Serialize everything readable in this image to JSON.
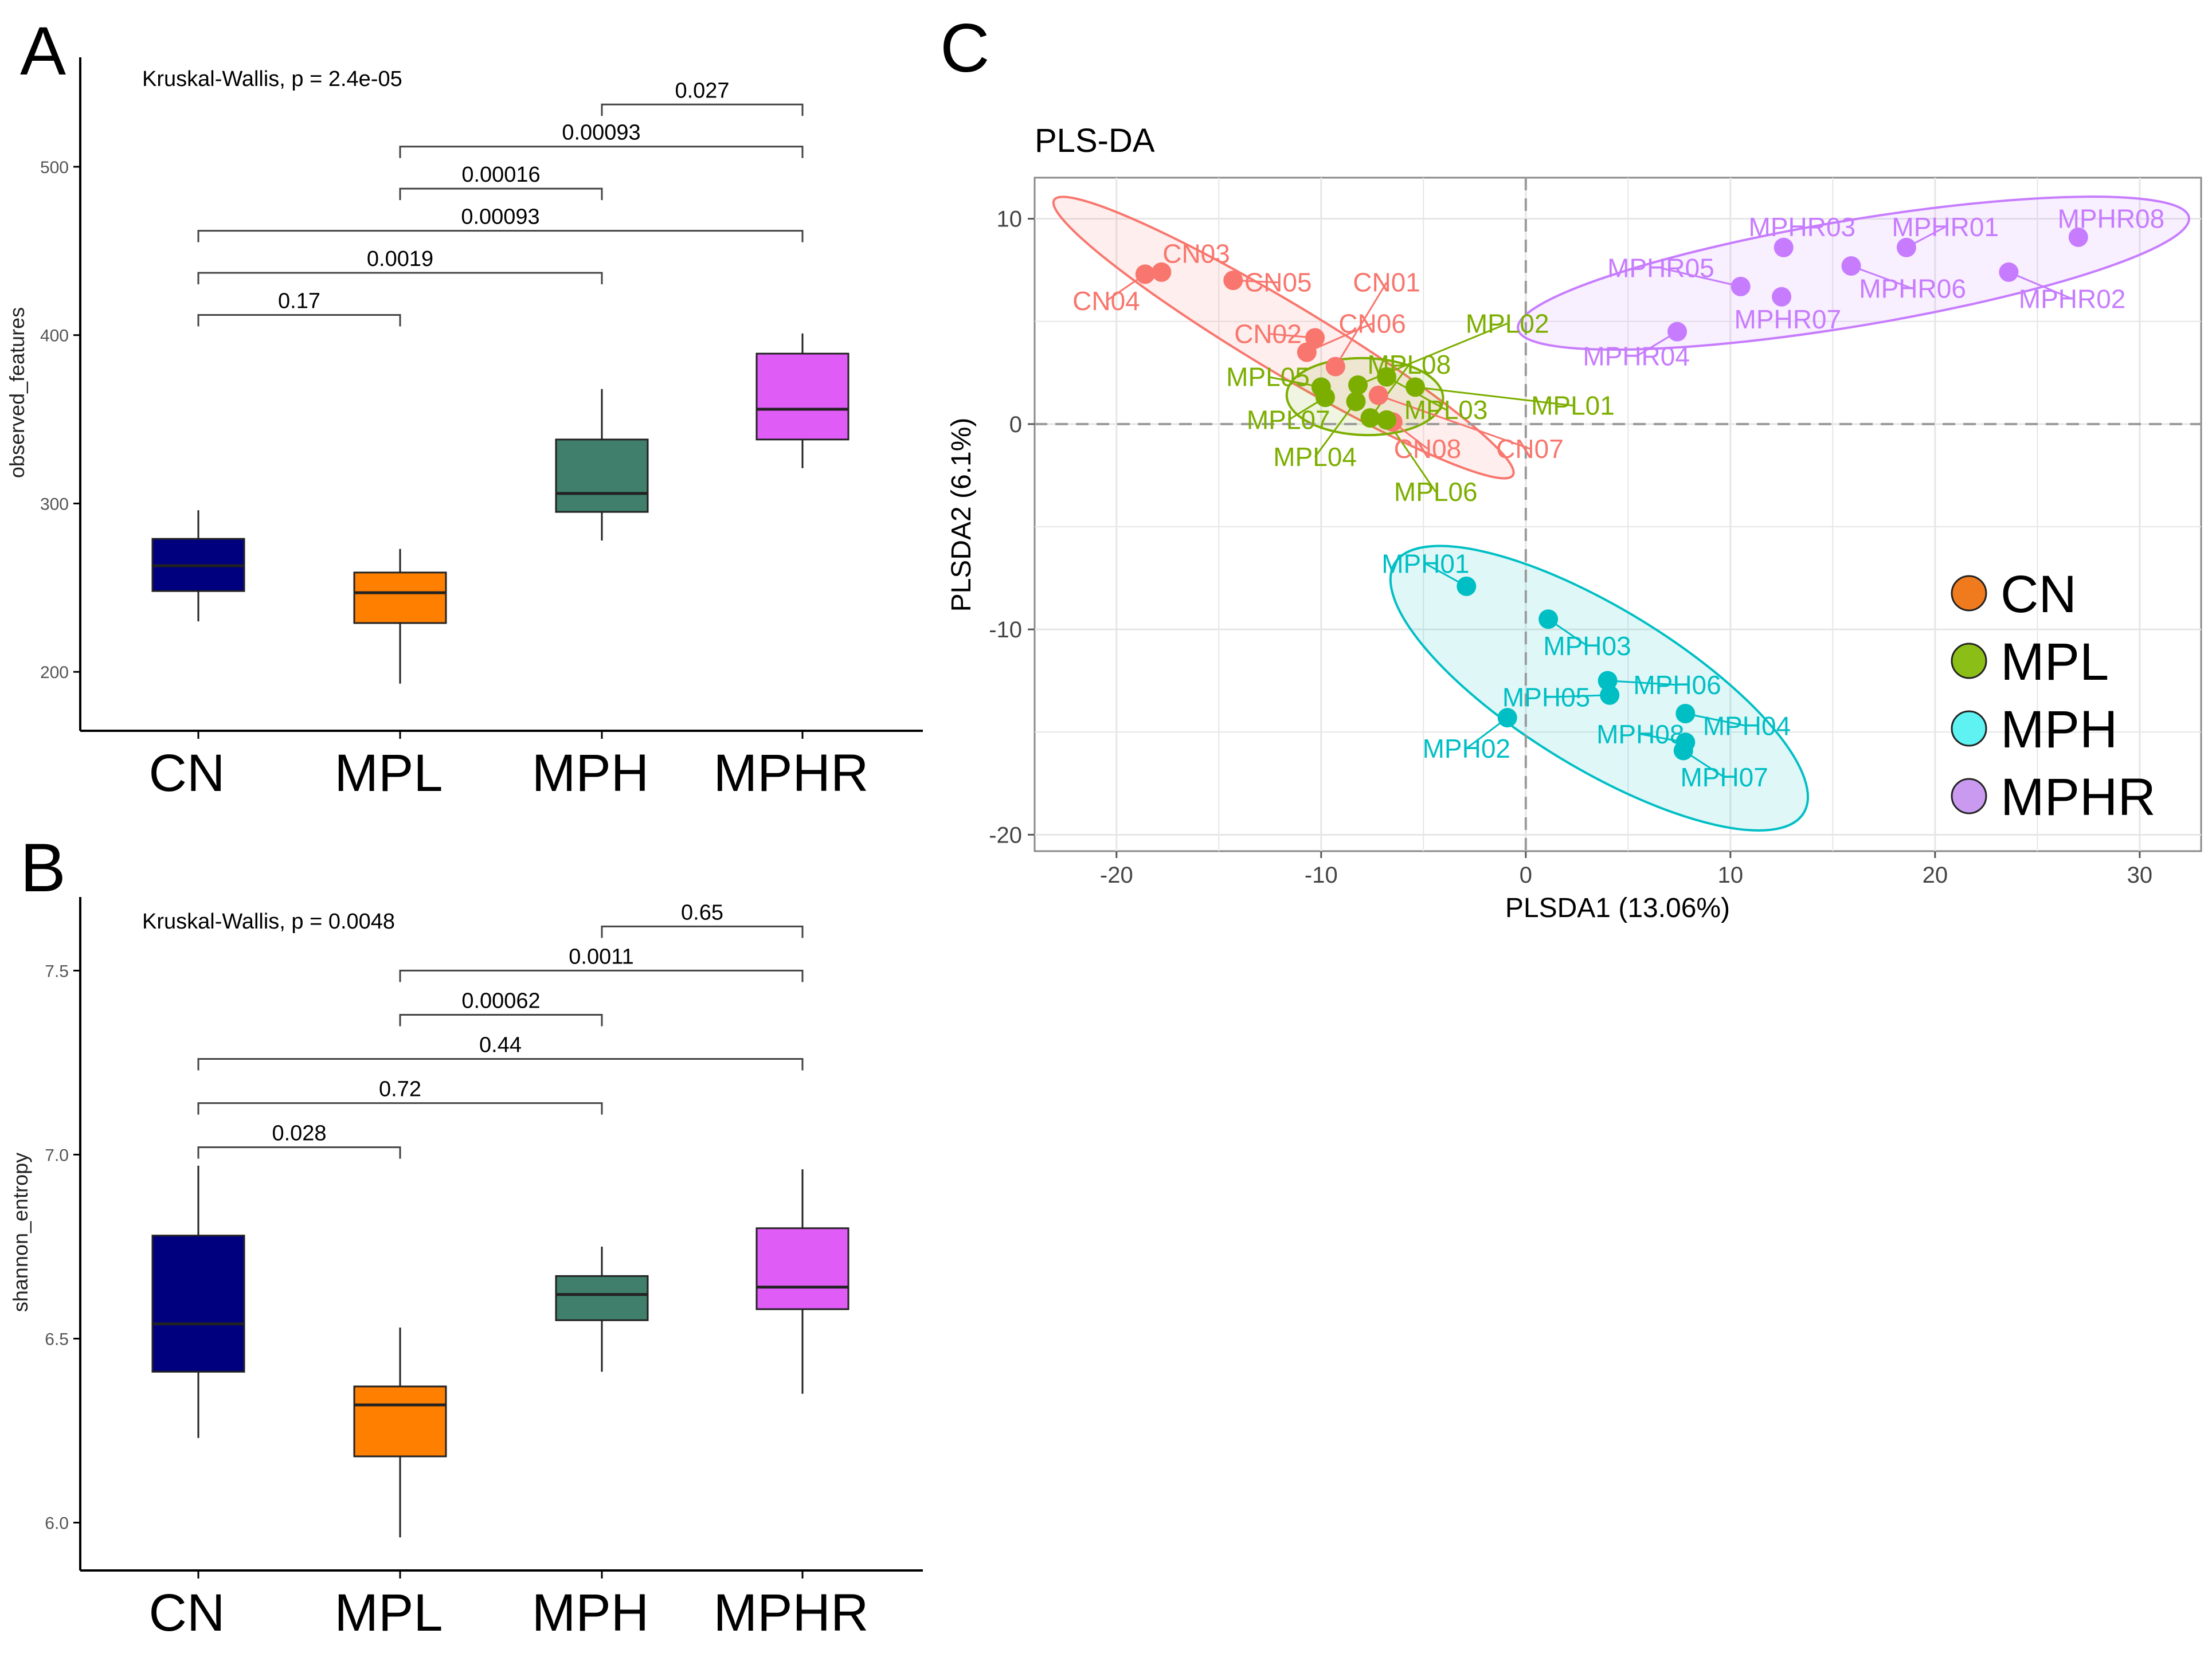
{
  "panels": {
    "a": "A",
    "b": "B",
    "c": "C"
  },
  "group_colors": {
    "CN": "#00007f",
    "MPL": "#ff7f00",
    "MPH": "#3f7f6b",
    "MPHR": "#e05cf7"
  },
  "chart_data": [
    {
      "type": "box",
      "panel": "A",
      "ylabel": "observed_features",
      "ylim": [
        165,
        565
      ],
      "yticks": [
        200,
        300,
        400,
        500
      ],
      "annotation": "Kruskal-Wallis, p = 2.4e-05",
      "categories": [
        "CN",
        "MPL",
        "MPH",
        "MPHR"
      ],
      "boxes": [
        {
          "name": "CN",
          "min": 230,
          "q1": 248,
          "median": 263,
          "q3": 279,
          "max": 296
        },
        {
          "name": "MPL",
          "min": 193,
          "q1": 229,
          "median": 247,
          "q3": 259,
          "max": 273
        },
        {
          "name": "MPH",
          "min": 278,
          "q1": 295,
          "median": 306,
          "q3": 338,
          "max": 368
        },
        {
          "name": "MPHR",
          "min": 321,
          "q1": 338,
          "median": 356,
          "q3": 389,
          "max": 401
        }
      ],
      "comparisons": [
        {
          "from": "CN",
          "to": "MPL",
          "label": "0.17",
          "y": 412
        },
        {
          "from": "CN",
          "to": "MPH",
          "label": "0.0019",
          "y": 437
        },
        {
          "from": "CN",
          "to": "MPHR",
          "label": "0.00093",
          "y": 462
        },
        {
          "from": "MPL",
          "to": "MPH",
          "label": "0.00016",
          "y": 487
        },
        {
          "from": "MPL",
          "to": "MPHR",
          "label": "0.00093",
          "y": 512
        },
        {
          "from": "MPH",
          "to": "MPHR",
          "label": "0.027",
          "y": 537
        }
      ]
    },
    {
      "type": "box",
      "panel": "B",
      "ylabel": "shannon_entropy",
      "ylim": [
        5.87,
        7.7
      ],
      "yticks": [
        6.0,
        6.5,
        7.0,
        7.5
      ],
      "annotation": "Kruskal-Wallis, p = 0.0048",
      "categories": [
        "CN",
        "MPL",
        "MPH",
        "MPHR"
      ],
      "boxes": [
        {
          "name": "CN",
          "min": 6.23,
          "q1": 6.41,
          "median": 6.54,
          "q3": 6.78,
          "max": 6.97
        },
        {
          "name": "MPL",
          "min": 5.96,
          "q1": 6.18,
          "median": 6.32,
          "q3": 6.37,
          "max": 6.53
        },
        {
          "name": "MPH",
          "min": 6.41,
          "q1": 6.55,
          "median": 6.62,
          "q3": 6.67,
          "max": 6.75
        },
        {
          "name": "MPHR",
          "min": 6.35,
          "q1": 6.58,
          "median": 6.64,
          "q3": 6.8,
          "max": 6.96
        }
      ],
      "comparisons": [
        {
          "from": "CN",
          "to": "MPL",
          "label": "0.028",
          "y": 7.02
        },
        {
          "from": "CN",
          "to": "MPH",
          "label": "0.72",
          "y": 7.14
        },
        {
          "from": "CN",
          "to": "MPHR",
          "label": "0.44",
          "y": 7.26
        },
        {
          "from": "MPL",
          "to": "MPH",
          "label": "0.00062",
          "y": 7.38
        },
        {
          "from": "MPL",
          "to": "MPHR",
          "label": "0.0011",
          "y": 7.5
        },
        {
          "from": "MPH",
          "to": "MPHR",
          "label": "0.65",
          "y": 7.62
        }
      ]
    },
    {
      "type": "scatter",
      "panel": "C",
      "title": "PLS-DA",
      "xlabel": "PLSDA1 (13.06%)",
      "ylabel": "PLSDA2 (6.1%)",
      "xlim": [
        -24,
        33
      ],
      "ylim": [
        -20.8,
        12
      ],
      "xticks": [
        -20,
        -10,
        0,
        10,
        20,
        30
      ],
      "yticks": [
        -20,
        -10,
        0,
        10
      ],
      "grid": true,
      "legend": {
        "position": "right",
        "entries": [
          {
            "name": "CN",
            "color": "#f07b1e"
          },
          {
            "name": "MPL",
            "color": "#8bbf17"
          },
          {
            "name": "MPH",
            "color": "#5ff2f2"
          },
          {
            "name": "MPHR",
            "color": "#c99af0"
          }
        ]
      },
      "series": [
        {
          "name": "CN",
          "color": "#f8766d",
          "points": [
            {
              "label": "CN03",
              "x": -17.8,
              "y": 7.4,
              "lx": -16.1,
              "ly": 8.3
            },
            {
              "label": "CN04",
              "x": -18.6,
              "y": 7.3,
              "lx": -20.5,
              "ly": 6.0
            },
            {
              "label": "CN05",
              "x": -14.3,
              "y": 7.0,
              "lx": -12.1,
              "ly": 6.9
            },
            {
              "label": "CN01",
              "x": -9.3,
              "y": 2.8,
              "lx": -6.8,
              "ly": 6.9
            },
            {
              "label": "CN02",
              "x": -10.3,
              "y": 4.2,
              "lx": -12.6,
              "ly": 4.4
            },
            {
              "label": "CN06",
              "x": -10.7,
              "y": 3.5,
              "lx": -7.5,
              "ly": 4.9
            },
            {
              "label": "CN07",
              "x": -7.2,
              "y": 1.4,
              "lx": 0.2,
              "ly": -1.2
            },
            {
              "label": "CN08",
              "x": -6.5,
              "y": 0.1,
              "lx": -4.8,
              "ly": -1.2
            }
          ]
        },
        {
          "name": "MPL",
          "color": "#7cae00",
          "points": [
            {
              "label": "MPL01",
              "x": -5.4,
              "y": 1.8,
              "lx": 2.3,
              "ly": 0.9
            },
            {
              "label": "MPL02",
              "x": -8.2,
              "y": 1.9,
              "lx": -0.9,
              "ly": 4.9
            },
            {
              "label": "MPL03",
              "x": -6.8,
              "y": 2.3,
              "lx": -3.9,
              "ly": 0.7
            },
            {
              "label": "MPL04",
              "x": -8.3,
              "y": 1.1,
              "lx": -10.3,
              "ly": -1.6
            },
            {
              "label": "MPL05",
              "x": -10.0,
              "y": 1.8,
              "lx": -12.6,
              "ly": 2.3
            },
            {
              "label": "MPL06",
              "x": -6.8,
              "y": 0.2,
              "lx": -4.4,
              "ly": -3.3
            },
            {
              "label": "MPL07",
              "x": -9.8,
              "y": 1.3,
              "lx": -11.6,
              "ly": 0.2
            },
            {
              "label": "MPL08",
              "x": -7.6,
              "y": 0.3,
              "lx": -5.7,
              "ly": 2.9
            }
          ]
        },
        {
          "name": "MPH",
          "color": "#00bfc4",
          "points": [
            {
              "label": "MPH01",
              "x": -2.9,
              "y": -7.9,
              "lx": -4.9,
              "ly": -6.8
            },
            {
              "label": "MPH02",
              "x": -0.9,
              "y": -14.3,
              "lx": -2.9,
              "ly": -15.8
            },
            {
              "label": "MPH03",
              "x": 1.1,
              "y": -9.5,
              "lx": 3.0,
              "ly": -10.8
            },
            {
              "label": "MPH04",
              "x": 7.8,
              "y": -14.1,
              "lx": 10.8,
              "ly": -14.7
            },
            {
              "label": "MPH05",
              "x": 4.1,
              "y": -13.2,
              "lx": 1.0,
              "ly": -13.3
            },
            {
              "label": "MPH06",
              "x": 4.0,
              "y": -12.5,
              "lx": 7.4,
              "ly": -12.7
            },
            {
              "label": "MPH07",
              "x": 7.7,
              "y": -15.9,
              "lx": 9.7,
              "ly": -17.2
            },
            {
              "label": "MPH08",
              "x": 7.8,
              "y": -15.5,
              "lx": 5.6,
              "ly": -15.1
            }
          ]
        },
        {
          "name": "MPHR",
          "color": "#c77cff",
          "points": [
            {
              "label": "MPHR01",
              "x": 18.6,
              "y": 8.6,
              "lx": 20.5,
              "ly": 9.6
            },
            {
              "label": "MPHR02",
              "x": 23.6,
              "y": 7.4,
              "lx": 26.7,
              "ly": 6.1
            },
            {
              "label": "MPHR03",
              "x": 12.6,
              "y": 8.6,
              "lx": 13.5,
              "ly": 9.6
            },
            {
              "label": "MPHR04",
              "x": 7.4,
              "y": 4.5,
              "lx": 5.4,
              "ly": 3.3
            },
            {
              "label": "MPHR05",
              "x": 10.5,
              "y": 6.7,
              "lx": 6.6,
              "ly": 7.6
            },
            {
              "label": "MPHR06",
              "x": 15.9,
              "y": 7.7,
              "lx": 18.9,
              "ly": 6.6
            },
            {
              "label": "MPHR07",
              "x": 12.5,
              "y": 6.2,
              "lx": 12.8,
              "ly": 5.1
            },
            {
              "label": "MPHR08",
              "x": 27.0,
              "y": 9.1,
              "lx": 28.6,
              "ly": 10.0
            }
          ]
        }
      ]
    }
  ]
}
